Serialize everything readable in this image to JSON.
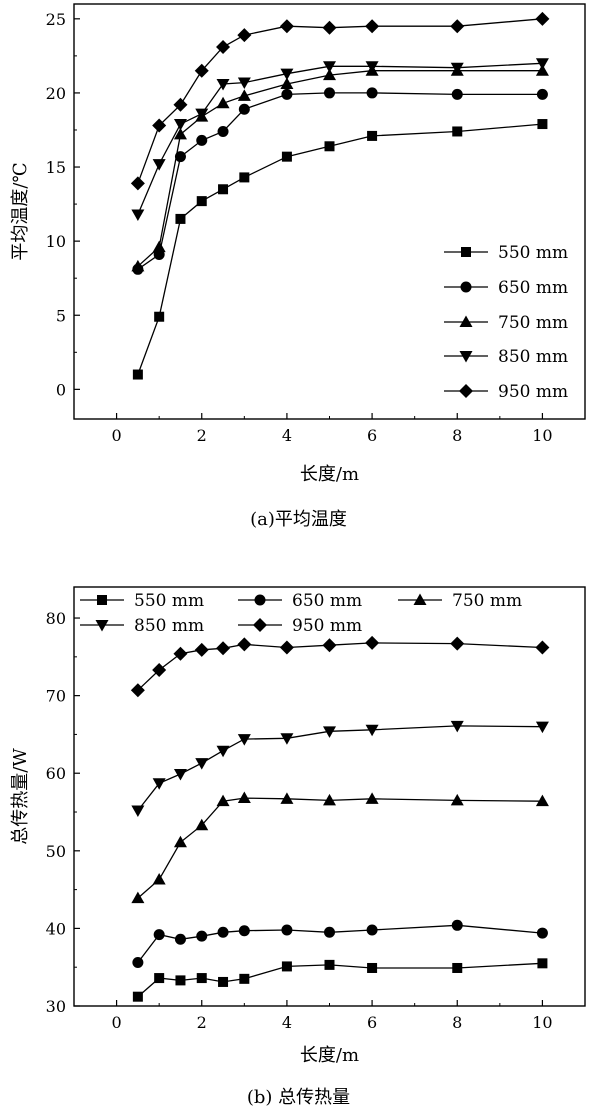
{
  "chart_data": [
    {
      "type": "line",
      "caption": "(a)平均温度",
      "xlabel": "长度/m",
      "ylabel": "平均温度/℃",
      "xlim": [
        -1,
        11
      ],
      "ylim": [
        -2,
        26
      ],
      "xticks": [
        0,
        2,
        4,
        6,
        8,
        10
      ],
      "yticks": [
        0,
        5,
        10,
        15,
        20,
        25
      ],
      "legend_position": "lower-right",
      "x": [
        0.5,
        1,
        1.5,
        2,
        2.5,
        3,
        4,
        5,
        6,
        8,
        10
      ],
      "series": [
        {
          "name": "550 mm",
          "marker": "square",
          "values": [
            1.0,
            4.9,
            11.5,
            12.7,
            13.5,
            14.3,
            15.7,
            16.4,
            17.1,
            17.4,
            17.9
          ]
        },
        {
          "name": "650 mm",
          "marker": "circle",
          "values": [
            8.1,
            9.1,
            15.7,
            16.8,
            17.4,
            18.9,
            19.9,
            20.0,
            20.0,
            19.9,
            19.9
          ]
        },
        {
          "name": "750 mm",
          "marker": "triangle-up",
          "values": [
            8.3,
            9.6,
            17.2,
            18.4,
            19.3,
            19.8,
            20.6,
            21.2,
            21.5,
            21.5,
            21.5
          ]
        },
        {
          "name": "850 mm",
          "marker": "triangle-down",
          "values": [
            11.8,
            15.2,
            17.9,
            18.6,
            20.6,
            20.7,
            21.3,
            21.8,
            21.8,
            21.7,
            22.0
          ]
        },
        {
          "name": "950 mm",
          "marker": "diamond",
          "values": [
            13.9,
            17.8,
            19.2,
            21.5,
            23.1,
            23.9,
            24.5,
            24.4,
            24.5,
            24.5,
            25.0
          ]
        }
      ]
    },
    {
      "type": "line",
      "caption": "(b) 总传热量",
      "xlabel": "长度/m",
      "ylabel": "总传热量/W",
      "xlim": [
        -1,
        11
      ],
      "ylim": [
        30,
        84
      ],
      "xticks": [
        0,
        2,
        4,
        6,
        8,
        10
      ],
      "yticks": [
        30,
        40,
        50,
        60,
        70,
        80
      ],
      "legend_position": "top",
      "x": [
        0.5,
        1,
        1.5,
        2,
        2.5,
        3,
        4,
        5,
        6,
        8,
        10
      ],
      "series": [
        {
          "name": "550 mm",
          "marker": "square",
          "values": [
            31.2,
            33.6,
            33.3,
            33.6,
            33.1,
            33.5,
            35.1,
            35.3,
            34.9,
            34.9,
            35.5
          ]
        },
        {
          "name": "650 mm",
          "marker": "circle",
          "values": [
            35.6,
            39.2,
            38.6,
            39.0,
            39.5,
            39.7,
            39.8,
            39.5,
            39.8,
            40.4,
            39.4
          ]
        },
        {
          "name": "750 mm",
          "marker": "triangle-up",
          "values": [
            43.9,
            46.3,
            51.1,
            53.3,
            56.4,
            56.8,
            56.7,
            56.5,
            56.7,
            56.5,
            56.4
          ]
        },
        {
          "name": "850 mm",
          "marker": "triangle-down",
          "values": [
            55.2,
            58.7,
            59.9,
            61.3,
            62.9,
            64.4,
            64.5,
            65.4,
            65.6,
            66.1,
            66.0
          ]
        },
        {
          "name": "950 mm",
          "marker": "diamond",
          "values": [
            70.7,
            73.3,
            75.4,
            75.9,
            76.1,
            76.6,
            76.2,
            76.5,
            76.8,
            76.7,
            76.2
          ]
        }
      ]
    }
  ]
}
